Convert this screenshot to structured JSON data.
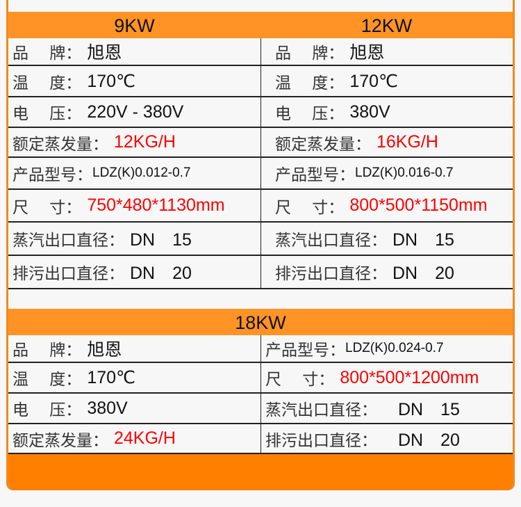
{
  "accent_color": "#ff9326",
  "highlight_color": "#ff0000",
  "sections": [
    {
      "columns": [
        {
          "title": "9KW",
          "rows": [
            {
              "label": "品　 牌：",
              "value": "旭恩"
            },
            {
              "label": "温　 度：",
              "value": "170℃"
            },
            {
              "label": "电　 压：",
              "value": "220V - 380V"
            },
            {
              "label": "额定蒸发量：",
              "value": "12KG/H",
              "highlight": true
            },
            {
              "label": "产品型号：",
              "value": "LDZ(K)0.012-0.7"
            },
            {
              "label": "尺　 寸：",
              "value": "750*480*1130mm",
              "highlight": true
            },
            {
              "label": "蒸汽出口直径：",
              "value": "DN　15"
            },
            {
              "label": "排污出口直径：",
              "value": "DN　20"
            }
          ]
        },
        {
          "title": "12KW",
          "rows": [
            {
              "label": "品　 牌：",
              "value": "旭恩"
            },
            {
              "label": "温　 度：",
              "value": "170℃"
            },
            {
              "label": "电　 压：",
              "value": "380V"
            },
            {
              "label": "额定蒸发量：",
              "value": "16KG/H",
              "highlight": true
            },
            {
              "label": "产品型号：",
              "value": "LDZ(K)0.016-0.7"
            },
            {
              "label": "尺　 寸：",
              "value": "800*500*1150mm",
              "highlight": true
            },
            {
              "label": "蒸汽出口直径：",
              "value": "DN　15"
            },
            {
              "label": "排污出口直径：",
              "value": "DN　20"
            }
          ]
        }
      ]
    },
    {
      "title": "18KW",
      "left": [
        {
          "label": "品　 牌：",
          "value": "旭恩"
        },
        {
          "label": "温　 度：",
          "value": "170℃"
        },
        {
          "label": "电　 压：",
          "value": "380V"
        },
        {
          "label": "额定蒸发量：",
          "value": "24KG/H",
          "highlight": true
        }
      ],
      "right": [
        {
          "label": "产品型号：",
          "value": "LDZ(K)0.024-0.7"
        },
        {
          "label": "尺　 寸：",
          "value": "800*500*1200mm",
          "highlight": true
        },
        {
          "label": "蒸汽出口直径：",
          "value": "DN　15"
        },
        {
          "label": "排污出口直径：",
          "value": "DN　20"
        }
      ]
    }
  ]
}
